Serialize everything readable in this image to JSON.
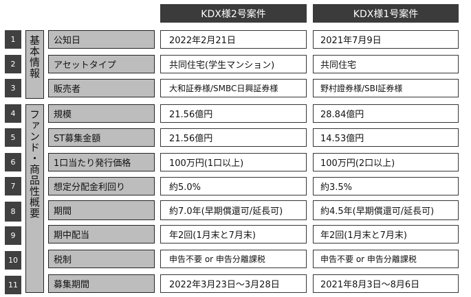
{
  "headers": [
    "KDX様2号案件",
    "KDX様1号案件"
  ],
  "groups": {
    "basic": "基本情報",
    "fund": "ファンド・商品性概要"
  },
  "rows": [
    {
      "no": "1",
      "label": "公知日",
      "v1": "2022年2月21日",
      "v2": "2021年7月9日"
    },
    {
      "no": "2",
      "label": "アセットタイプ",
      "v1": "共同住宅(学生マンション)",
      "v2": "共同住宅"
    },
    {
      "no": "3",
      "label": "販売者",
      "v1": "大和証券様/SMBC日興証券様",
      "v2": "野村證券様/SBI証券様"
    },
    {
      "no": "4",
      "label": "規模",
      "v1": "21.56億円",
      "v2": "28.84億円"
    },
    {
      "no": "5",
      "label": "ST募集金額",
      "v1": "21.56億円",
      "v2": "14.53億円"
    },
    {
      "no": "6",
      "label": "1口当たり発行価格",
      "v1": "100万円(1口以上)",
      "v2": "100万円(2口以上)"
    },
    {
      "no": "7",
      "label": "想定分配金利回り",
      "v1": "約5.0%",
      "v2": "約3.5%"
    },
    {
      "no": "8",
      "label": "期間",
      "v1": "約7.0年(早期償還可/延長可)",
      "v2": "約4.5年(早期償還可/延長可)"
    },
    {
      "no": "9",
      "label": "期中配当",
      "v1": "年2回(1月末と7月末)",
      "v2": "年2回(1月末と7月末)"
    },
    {
      "no": "10",
      "label": "税制",
      "v1": "申告不要 or 申告分離課税",
      "v2": "申告不要 or 申告分離課税"
    },
    {
      "no": "11",
      "label": "募集期間",
      "v1": "2022年3月23日～3月28日",
      "v2": "2021年8月3日～8月6日"
    }
  ]
}
